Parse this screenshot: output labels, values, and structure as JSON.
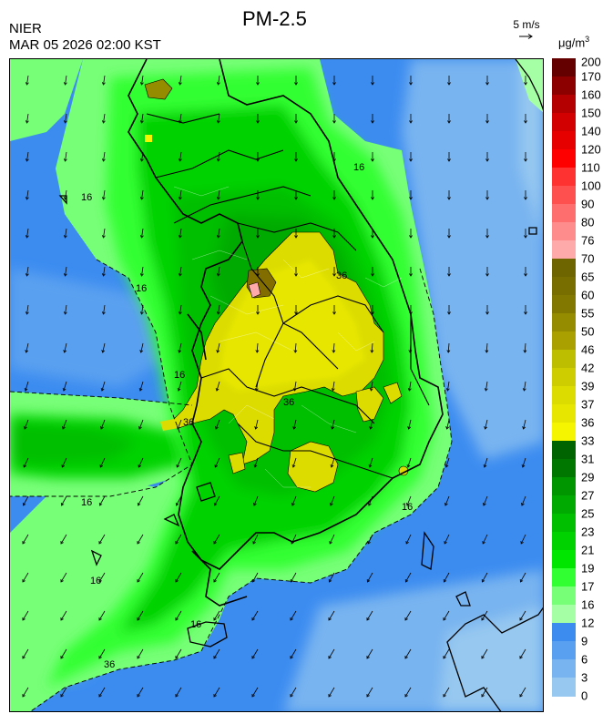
{
  "header": {
    "organization": "NIER",
    "timestamp": "MAR 05 2026 02:00 KST",
    "title": "PM-2.5"
  },
  "wind_reference": {
    "label": "5 m/s"
  },
  "colorbar": {
    "unit_base": "μg/m",
    "unit_exp": "3",
    "levels": [
      {
        "label": "200",
        "color": "#640000"
      },
      {
        "label": "170",
        "color": "#8c0000"
      },
      {
        "label": "160",
        "color": "#b40000"
      },
      {
        "label": "150",
        "color": "#d20000"
      },
      {
        "label": "140",
        "color": "#e60000"
      },
      {
        "label": "120",
        "color": "#ff0000"
      },
      {
        "label": "110",
        "color": "#ff3232"
      },
      {
        "label": "100",
        "color": "#ff5050"
      },
      {
        "label": "90",
        "color": "#ff6e6e"
      },
      {
        "label": "80",
        "color": "#ff8c8c"
      },
      {
        "label": "76",
        "color": "#ffaaaa"
      },
      {
        "label": "70",
        "color": "#6e6400"
      },
      {
        "label": "65",
        "color": "#786e00"
      },
      {
        "label": "60",
        "color": "#827800"
      },
      {
        "label": "55",
        "color": "#968c00"
      },
      {
        "label": "50",
        "color": "#aaa000"
      },
      {
        "label": "46",
        "color": "#bebe00"
      },
      {
        "label": "42",
        "color": "#cdcd00"
      },
      {
        "label": "39",
        "color": "#dcdc00"
      },
      {
        "label": "37",
        "color": "#e6e600"
      },
      {
        "label": "36",
        "color": "#f5f500"
      },
      {
        "label": "33",
        "color": "#006400"
      },
      {
        "label": "31",
        "color": "#007800"
      },
      {
        "label": "29",
        "color": "#009600"
      },
      {
        "label": "27",
        "color": "#00aa00"
      },
      {
        "label": "25",
        "color": "#00be00"
      },
      {
        "label": "23",
        "color": "#00d200"
      },
      {
        "label": "21",
        "color": "#00e600"
      },
      {
        "label": "19",
        "color": "#32ff32"
      },
      {
        "label": "17",
        "color": "#78ff78"
      },
      {
        "label": "16",
        "color": "#a5ffa5"
      },
      {
        "label": "12",
        "color": "#3c8cf0"
      },
      {
        "label": "9",
        "color": "#5aa0f0"
      },
      {
        "label": "6",
        "color": "#78b4f0"
      },
      {
        "label": "3",
        "color": "#96c8f0"
      },
      {
        "label": "0",
        "color": "#b4dcf0"
      }
    ]
  },
  "map": {
    "contour_labels": [
      {
        "text": "16"
      },
      {
        "text": "16"
      },
      {
        "text": "16"
      },
      {
        "text": "16"
      },
      {
        "text": "16"
      },
      {
        "text": "16"
      },
      {
        "text": "16"
      },
      {
        "text": "16"
      },
      {
        "text": "36"
      },
      {
        "text": "36"
      },
      {
        "text": "36"
      },
      {
        "text": "36"
      }
    ],
    "wind": {
      "direction": "north-to-south",
      "rows": 17,
      "cols": 14
    }
  }
}
